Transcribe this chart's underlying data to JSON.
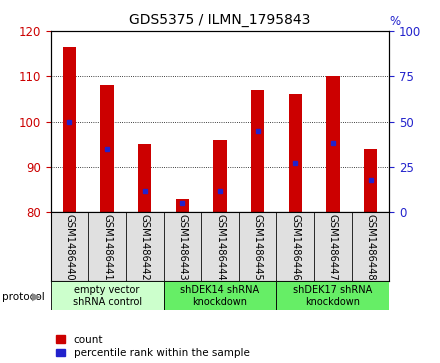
{
  "title": "GDS5375 / ILMN_1795843",
  "samples": [
    "GSM1486440",
    "GSM1486441",
    "GSM1486442",
    "GSM1486443",
    "GSM1486444",
    "GSM1486445",
    "GSM1486446",
    "GSM1486447",
    "GSM1486448"
  ],
  "bar_values": [
    116.5,
    108.0,
    95.0,
    83.0,
    96.0,
    107.0,
    106.0,
    110.0,
    94.0
  ],
  "percentile_ranks": [
    50,
    35,
    12,
    5,
    12,
    45,
    27,
    38,
    18
  ],
  "bar_color": "#cc0000",
  "marker_color": "#2222cc",
  "ylim": [
    80,
    120
  ],
  "yticks_left": [
    80,
    90,
    100,
    110,
    120
  ],
  "yticks_right": [
    0,
    25,
    50,
    75,
    100
  ],
  "protocols": [
    {
      "label": "empty vector\nshRNA control",
      "start": 0,
      "end": 3,
      "color": "#ccffcc"
    },
    {
      "label": "shDEK14 shRNA\nknockdown",
      "start": 3,
      "end": 6,
      "color": "#66ee66"
    },
    {
      "label": "shDEK17 shRNA\nknockdown",
      "start": 6,
      "end": 9,
      "color": "#66ee66"
    }
  ],
  "legend_count_label": "count",
  "legend_pct_label": "percentile rank within the sample",
  "protocol_label": "protocol",
  "bar_width": 0.35,
  "baseline": 80
}
